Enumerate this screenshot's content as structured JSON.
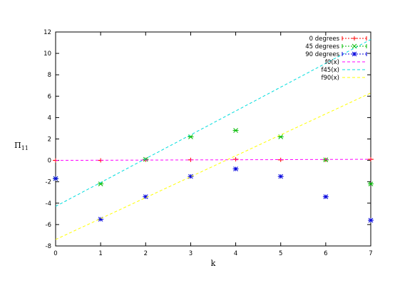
{
  "chart_data": {
    "type": "scatter",
    "title": "",
    "xlabel": "k",
    "ylabel": "Π",
    "ylabel_sub": "11",
    "xlim": [
      0,
      7
    ],
    "ylim": [
      -8,
      12
    ],
    "xticks": [
      0,
      1,
      2,
      3,
      4,
      5,
      6,
      7
    ],
    "yticks": [
      -8,
      -6,
      -4,
      -2,
      0,
      2,
      4,
      6,
      8,
      10,
      12
    ],
    "legend_position": "top-right",
    "series": [
      {
        "name": "0 degrees",
        "kind": "points-errorbar",
        "marker": "plus",
        "color": "#ff0000",
        "x": [
          0,
          1,
          2,
          3,
          4,
          5,
          6,
          7
        ],
        "y": [
          0.0,
          0.0,
          0.05,
          0.05,
          0.1,
          0.05,
          0.05,
          0.1
        ]
      },
      {
        "name": "45 degrees",
        "kind": "points-errorbar",
        "marker": "x",
        "color": "#00bb00",
        "x": [
          0,
          1,
          2,
          3,
          4,
          5,
          6,
          7
        ],
        "y": [
          -1.7,
          -2.2,
          0.1,
          2.2,
          2.8,
          2.2,
          0.05,
          -2.2
        ]
      },
      {
        "name": "90 degrees",
        "kind": "points-errorbar",
        "marker": "star",
        "color": "#0000dd",
        "x": [
          0,
          1,
          2,
          3,
          4,
          5,
          6,
          7
        ],
        "y": [
          -1.7,
          -5.5,
          -3.4,
          -1.5,
          -0.8,
          -1.5,
          -3.4,
          -5.6
        ]
      },
      {
        "name": "f0(x)",
        "kind": "line",
        "color": "#ff00ff",
        "x": [
          0,
          7
        ],
        "y": [
          0.0,
          0.1
        ]
      },
      {
        "name": "f45(x)",
        "kind": "line",
        "color": "#00dddd",
        "x": [
          0,
          7
        ],
        "y": [
          -4.3,
          11.3
        ]
      },
      {
        "name": "f90(x)",
        "kind": "line",
        "color": "#ffff00",
        "x": [
          0,
          7
        ],
        "y": [
          -7.4,
          6.3
        ]
      }
    ]
  }
}
